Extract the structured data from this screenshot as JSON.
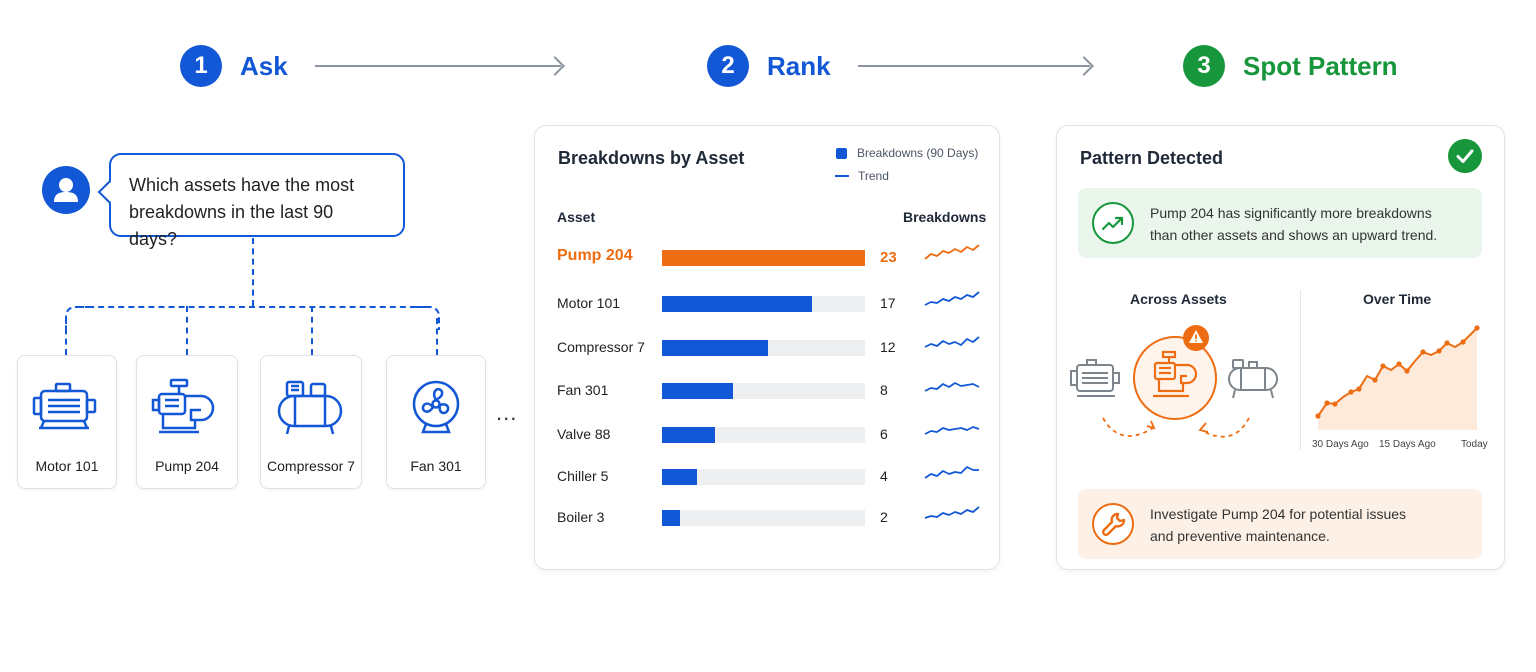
{
  "steps": [
    {
      "number": "1",
      "label": "Ask"
    },
    {
      "number": "2",
      "label": "Rank"
    },
    {
      "number": "3",
      "label": "Spot Pattern"
    }
  ],
  "ask": {
    "question_line1": "Which assets have the most",
    "question_line2": "breakdowns in the last 90 days?",
    "assets": [
      "Motor 101",
      "Pump 204",
      "Compressor 7",
      "Fan 301"
    ],
    "more": "..."
  },
  "rank": {
    "title": "Breakdowns by Asset",
    "legend_bar": "Breakdowns (90 Days)",
    "legend_line": "Trend",
    "col_asset": "Asset",
    "col_breakdowns": "Breakdowns"
  },
  "chart_data": {
    "type": "bar",
    "categories": [
      "Pump 204",
      "Motor 101",
      "Compressor 7",
      "Fan 301",
      "Valve 88",
      "Chiller 5",
      "Boiler 3"
    ],
    "values": [
      23,
      17,
      12,
      8,
      6,
      4,
      2
    ],
    "ylabel": "Breakdowns",
    "xmax": 23,
    "highlight": "Pump 204"
  },
  "pattern": {
    "title": "Pattern Detected",
    "insight_line1": "Pump 204 has significantly more breakdowns",
    "insight_line2": "than other assets and shows an upward trend.",
    "across_title": "Across Assets",
    "over_time_title": "Over Time",
    "time_ticks": [
      "30 Days Ago",
      "15 Days Ago",
      "Today"
    ],
    "action_line1": "Investigate Pump 204 for potential issues",
    "action_line2": "and preventive maintenance."
  },
  "colors": {
    "blue": "#1257d6",
    "orange": "#ee6c12",
    "green": "#17963c"
  }
}
